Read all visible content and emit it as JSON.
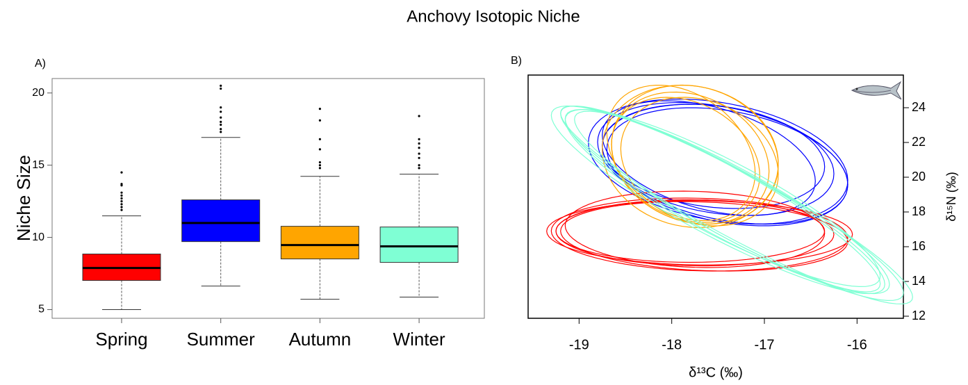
{
  "title": "Anchovy Isotopic Niche",
  "chart_data": [
    {
      "type": "box",
      "label": "A)",
      "ylabel": "Niche Size",
      "categories": [
        "Spring",
        "Summer",
        "Autumn",
        "Winter"
      ],
      "colors": [
        "#ff0000",
        "#0000ff",
        "#ffa500",
        "#7fffd4"
      ],
      "values": [
        {
          "low": 5.0,
          "q1": 7.02,
          "median": 7.88,
          "q3": 8.85,
          "high": 11.49,
          "outliers": [
            14.5,
            13.7,
            13.6,
            13.1,
            12.9,
            12.7,
            12.5,
            12.3,
            12.1,
            11.9
          ]
        },
        {
          "low": 6.63,
          "q1": 9.71,
          "median": 11.0,
          "q3": 12.6,
          "high": 16.92,
          "outliers": [
            20.5,
            20.3,
            19.0,
            18.7,
            18.3,
            18.0,
            17.8,
            17.5,
            17.3
          ]
        },
        {
          "low": 5.72,
          "q1": 8.51,
          "median": 9.47,
          "q3": 10.77,
          "high": 14.23,
          "outliers": [
            18.9,
            18.1,
            16.8,
            16.1,
            15.2,
            15.0,
            14.8
          ]
        },
        {
          "low": 5.87,
          "q1": 8.27,
          "median": 9.38,
          "q3": 10.72,
          "high": 14.38,
          "outliers": [
            18.4,
            16.8,
            16.5,
            16.2,
            15.8,
            15.5,
            15.0,
            14.8
          ]
        }
      ],
      "ylim": [
        4.4,
        21.0
      ],
      "yticks": [
        5,
        10,
        15,
        20
      ]
    },
    {
      "type": "ellipse",
      "label": "B)",
      "xlabel": "δ¹³C (‰)",
      "ylabel": "δ¹⁵N (‰)",
      "xlim": [
        -19.55,
        -15.5
      ],
      "ylim": [
        11.88,
        25.88
      ],
      "xticks": [
        -19,
        -18,
        -17,
        -16
      ],
      "yticks": [
        12,
        14,
        16,
        18,
        20,
        22,
        24
      ],
      "series": [
        {
          "color": "#0000ff",
          "cx": [
            -17.5,
            -17.45,
            -17.55,
            -17.4,
            -17.6,
            -17.5
          ],
          "cy": [
            21.0,
            20.8,
            21.2,
            20.6,
            21.1,
            20.9
          ],
          "rx": [
            1.25,
            1.35,
            1.2,
            1.3,
            1.15,
            1.4
          ],
          "ry": [
            3.2,
            3.5,
            3.0,
            3.4,
            3.3,
            3.6
          ],
          "rho": [
            -0.25,
            -0.35,
            -0.2,
            -0.3,
            -0.4,
            -0.3
          ]
        },
        {
          "color": "#ff0000",
          "cx": [
            -17.75,
            -17.7,
            -17.8,
            -17.65,
            -17.7,
            -17.75
          ],
          "cy": [
            16.8,
            16.7,
            16.9,
            16.6,
            16.8,
            17.0
          ],
          "rx": [
            1.5,
            1.6,
            1.45,
            1.55,
            1.65,
            1.4
          ],
          "ry": [
            1.9,
            2.1,
            1.8,
            2.0,
            1.85,
            2.2
          ],
          "rho": [
            -0.05,
            -0.1,
            0,
            -0.15,
            -0.05,
            -0.1
          ]
        },
        {
          "color": "#ffa500",
          "cx": [
            -17.8,
            -17.75,
            -17.85,
            -17.8,
            -17.7,
            -17.9
          ],
          "cy": [
            21.1,
            21.3,
            21.0,
            21.2,
            20.9,
            21.4
          ],
          "rx": [
            0.85,
            0.9,
            0.8,
            0.95,
            0.85,
            0.8
          ],
          "ry": [
            3.8,
            4.0,
            3.6,
            4.1,
            3.7,
            3.9
          ],
          "rho": [
            -0.2,
            -0.15,
            -0.25,
            -0.1,
            -0.2,
            -0.3
          ]
        },
        {
          "color": "#7fffd4",
          "cx": [
            -17.4,
            -17.35,
            -17.45,
            -17.3,
            -17.5,
            -17.4
          ],
          "cy": [
            18.6,
            18.5,
            18.8,
            18.4,
            18.7,
            18.6
          ],
          "rx": [
            1.75,
            1.85,
            1.7,
            1.9,
            1.8,
            1.65
          ],
          "ry": [
            5.3,
            5.6,
            5.1,
            5.7,
            5.4,
            5.2
          ],
          "rho": [
            -0.9,
            -0.92,
            -0.88,
            -0.93,
            -0.9,
            -0.91
          ]
        }
      ]
    }
  ]
}
